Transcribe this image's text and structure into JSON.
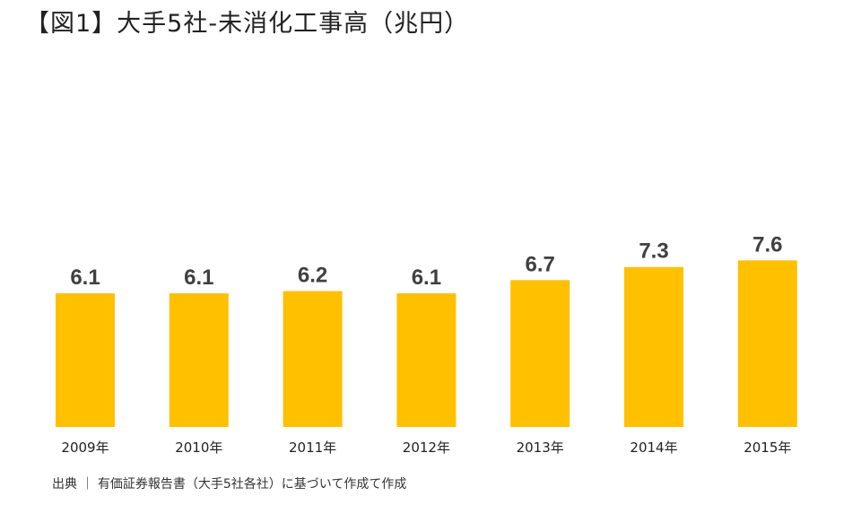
{
  "colors": {
    "bar": "#FFC000",
    "value_label": "#404040",
    "category_label": "#222222"
  },
  "chart_data": {
    "type": "bar",
    "title": "【図1】大手5社-未消化工事高（兆円）",
    "categories": [
      "2009年",
      "2010年",
      "2011年",
      "2012年",
      "2013年",
      "2014年",
      "2015年"
    ],
    "values": [
      6.1,
      6.1,
      6.2,
      6.1,
      6.7,
      7.3,
      7.6
    ],
    "value_labels": [
      "6.1",
      "6.1",
      "6.2",
      "6.1",
      "6.7",
      "7.3",
      "7.6"
    ],
    "xlabel": "",
    "ylabel": "",
    "grid": false,
    "legend": "none",
    "source": "出典 ｜ 有価証券報告書（大手5社各社）に基づいて作成て作成"
  }
}
